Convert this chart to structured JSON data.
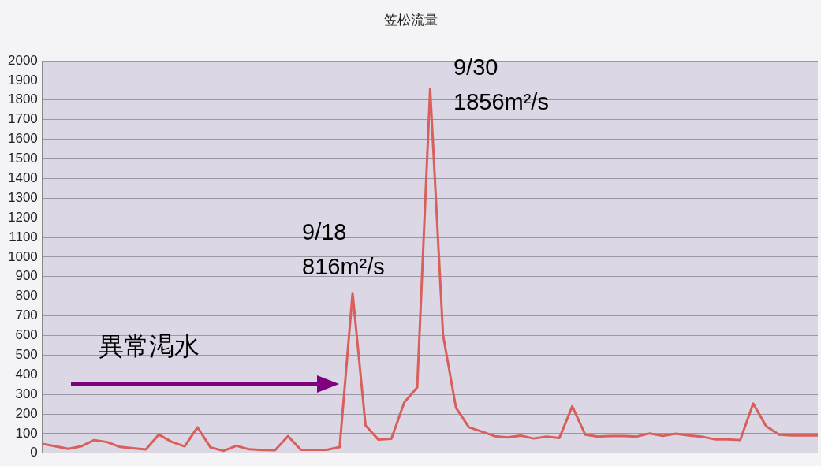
{
  "chart_data": {
    "type": "line",
    "title": "笠松流量",
    "categories": [
      null,
      null,
      null,
      null,
      null,
      null,
      null,
      null,
      null,
      null,
      null,
      null,
      null,
      null,
      null,
      null,
      null,
      null,
      null,
      null,
      null,
      null,
      null,
      null,
      null,
      null,
      null,
      null,
      null,
      null,
      null,
      null,
      null,
      null,
      null,
      null,
      null,
      null,
      null,
      null,
      null,
      null,
      null,
      null,
      null,
      null,
      null,
      null,
      null,
      null,
      null,
      null,
      null,
      null,
      null,
      null,
      null,
      null,
      null,
      null,
      null
    ],
    "series": [
      {
        "color": "#d9605a",
        "values": [
          48,
          35,
          22,
          35,
          67,
          57,
          32,
          25,
          19,
          95,
          58,
          35,
          132,
          30,
          12,
          38,
          20,
          16,
          15,
          87,
          17,
          17,
          17,
          31,
          816,
          142,
          69,
          74,
          259,
          336,
          1856,
          602,
          232,
          132,
          110,
          87,
          81,
          90,
          75,
          85,
          78,
          239,
          95,
          85,
          88,
          88,
          85,
          101,
          88,
          100,
          91,
          85,
          71,
          71,
          67,
          253,
          138,
          95,
          91,
          91,
          91
        ]
      }
    ],
    "ylim": [
      0,
      2000
    ],
    "yticks": [
      0,
      100,
      200,
      300,
      400,
      500,
      600,
      700,
      800,
      900,
      1000,
      1100,
      1200,
      1300,
      1400,
      1500,
      1600,
      1700,
      1800,
      1900,
      2000
    ],
    "grid": "y",
    "legend": false,
    "marker": "none",
    "line_style": "solid",
    "tick_labels": "y",
    "annotations": [
      "9/18\n816m²/s",
      "9/30\n1856m²/s",
      "異常渇水"
    ]
  }
}
